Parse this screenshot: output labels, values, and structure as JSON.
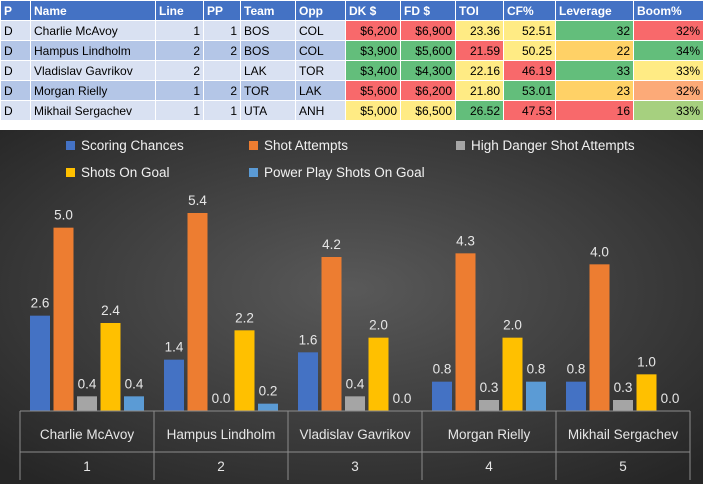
{
  "table": {
    "headers": [
      "P",
      "Name",
      "Line",
      "PP",
      "Team",
      "Opp",
      "DK $",
      "FD $",
      "TOI",
      "CF%",
      "Leverage",
      "Boom%"
    ],
    "rows": [
      [
        "D",
        "Charlie McAvoy",
        "1",
        "1",
        "BOS",
        "COL",
        "$6,200",
        "$6,900",
        "23.36",
        "52.51",
        "32",
        "32%"
      ],
      [
        "D",
        "Hampus Lindholm",
        "2",
        "2",
        "BOS",
        "COL",
        "$3,900",
        "$5,600",
        "21.59",
        "50.25",
        "22",
        "34%"
      ],
      [
        "D",
        "Vladislav Gavrikov",
        "2",
        "",
        "LAK",
        "TOR",
        "$3,400",
        "$4,300",
        "22.16",
        "46.19",
        "33",
        "33%"
      ],
      [
        "D",
        "Morgan Rielly",
        "1",
        "2",
        "TOR",
        "LAK",
        "$5,600",
        "$6,200",
        "21.80",
        "53.01",
        "23",
        "32%"
      ],
      [
        "D",
        "Mikhail Sergachev",
        "1",
        "1",
        "UTA",
        "ANH",
        "$5,000",
        "$6,500",
        "26.52",
        "47.53",
        "16",
        "33%"
      ]
    ],
    "cell_colors": [
      [
        "",
        "",
        "",
        "",
        "",
        "",
        "#f8696b",
        "#f8696b",
        "#ffeb84",
        "#ffeb84",
        "#63be7b",
        "#f8696b"
      ],
      [
        "",
        "",
        "",
        "",
        "",
        "",
        "#63be7b",
        "#63be7b",
        "#f8696b",
        "#ffeb84",
        "#ffd166",
        "#63be7b"
      ],
      [
        "",
        "",
        "",
        "",
        "",
        "",
        "#63be7b",
        "#63be7b",
        "#ffeb84",
        "#f8696b",
        "#63be7b",
        "#ffeb84"
      ],
      [
        "",
        "",
        "",
        "",
        "",
        "",
        "#f8696b",
        "#f8696b",
        "#ffeb84",
        "#63be7b",
        "#ffd166",
        "#fcaa78"
      ],
      [
        "",
        "",
        "",
        "",
        "",
        "",
        "#ffeb84",
        "#ffeb84",
        "#63be7b",
        "#f8696b",
        "#f8696b",
        "#a6d07f"
      ]
    ]
  },
  "chart_data": {
    "type": "bar",
    "categories": [
      {
        "name": "Charlie McAvoy",
        "index": "1"
      },
      {
        "name": "Hampus Lindholm",
        "index": "2"
      },
      {
        "name": "Vladislav Gavrikov",
        "index": "3"
      },
      {
        "name": "Morgan Rielly",
        "index": "4"
      },
      {
        "name": "Mikhail Sergachev",
        "index": "5"
      }
    ],
    "series": [
      {
        "name": "Scoring Chances",
        "color": "#4472c4",
        "values": [
          2.6,
          1.4,
          1.6,
          0.8,
          0.8
        ]
      },
      {
        "name": "Shot Attempts",
        "color": "#ed7d31",
        "values": [
          5.0,
          5.4,
          4.2,
          4.3,
          4.0
        ]
      },
      {
        "name": "High Danger Shot Attempts",
        "color": "#a5a5a5",
        "values": [
          0.4,
          0.0,
          0.4,
          0.3,
          0.3
        ]
      },
      {
        "name": "Shots On Goal",
        "color": "#ffc000",
        "values": [
          2.4,
          2.2,
          2.0,
          2.0,
          1.0
        ]
      },
      {
        "name": "Power Play Shots On Goal",
        "color": "#5b9bd5",
        "values": [
          0.4,
          0.2,
          0.0,
          0.8,
          0.0
        ]
      }
    ],
    "ylim": [
      0,
      6
    ],
    "data_labels": true,
    "legend_position": "top",
    "background": "#404040"
  }
}
